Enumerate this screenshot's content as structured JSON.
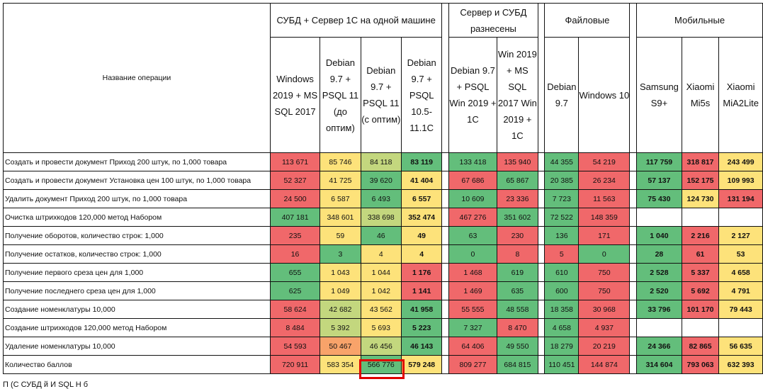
{
  "header": {
    "operation_label": "Название операции",
    "groups": [
      {
        "label": "СУБД + Сервер 1С на одной машине"
      },
      {
        "label": "Сервер и СУБД разнесены"
      },
      {
        "label": "Файловые"
      },
      {
        "label": "Мобильные"
      }
    ],
    "columns": [
      {
        "label": "Windows 2019 + MS SQL 2017"
      },
      {
        "label": "Debian 9.7 + PSQL 11 (до оптим)"
      },
      {
        "label": "Debian 9.7 + PSQL 11 (с оптим)"
      },
      {
        "label": "Debian 9.7 + PSQL 10.5-11.1C"
      },
      {
        "label": "Debian 9.7 + PSQL Win 2019 + 1C"
      },
      {
        "label": "Win 2019 + MS SQL 2017 Win 2019 + 1C"
      },
      {
        "label": "Debian 9.7"
      },
      {
        "label": "Windows 10"
      },
      {
        "label": "Samsung S9+"
      },
      {
        "label": "Xiaomi Mi5s"
      },
      {
        "label": "Xiaomi MiA2Lite"
      }
    ]
  },
  "colors": {
    "red": "#f0686a",
    "orange": "#f8a36a",
    "yellow": "#fde27a",
    "light_green": "#c3d77e",
    "green": "#63be7b",
    "highlight_border": "#e00000"
  },
  "rows": [
    {
      "name": "Создать и провести документ  Приход 200 штук, по 1,000 товара",
      "cells": [
        {
          "v": "113 671",
          "c": "R"
        },
        {
          "v": "85 746",
          "c": "Y"
        },
        {
          "v": "84 118",
          "c": "L"
        },
        {
          "v": "83 119",
          "c": "G",
          "b": true
        },
        {
          "v": "133 418",
          "c": "G"
        },
        {
          "v": "135 940",
          "c": "R"
        },
        {
          "v": "44 355",
          "c": "G"
        },
        {
          "v": "54 219",
          "c": "R"
        },
        {
          "v": "117 759",
          "c": "G",
          "b": true
        },
        {
          "v": "318 817",
          "c": "R",
          "b": true
        },
        {
          "v": "243 499",
          "c": "Y",
          "b": true
        }
      ]
    },
    {
      "name": "Создать и провести документ Установка цен 100 штук, по 1,000 товара",
      "cells": [
        {
          "v": "52 327",
          "c": "R"
        },
        {
          "v": "41 725",
          "c": "Y"
        },
        {
          "v": "39 620",
          "c": "G"
        },
        {
          "v": "41 404",
          "c": "Y",
          "b": true
        },
        {
          "v": "67 686",
          "c": "R"
        },
        {
          "v": "65 867",
          "c": "G"
        },
        {
          "v": "20 385",
          "c": "G"
        },
        {
          "v": "26 234",
          "c": "R"
        },
        {
          "v": "57 137",
          "c": "G",
          "b": true
        },
        {
          "v": "152 175",
          "c": "R",
          "b": true
        },
        {
          "v": "109 993",
          "c": "Y",
          "b": true
        }
      ]
    },
    {
      "name": "Удалить документ Приход 200 штук, по 1,000 товара",
      "cells": [
        {
          "v": "24 500",
          "c": "R"
        },
        {
          "v": "6 587",
          "c": "Y"
        },
        {
          "v": "6 493",
          "c": "G"
        },
        {
          "v": "6 557",
          "c": "Y",
          "b": true
        },
        {
          "v": "10 609",
          "c": "G"
        },
        {
          "v": "23 336",
          "c": "R"
        },
        {
          "v": "7 723",
          "c": "G"
        },
        {
          "v": "11 563",
          "c": "R"
        },
        {
          "v": "75 430",
          "c": "G",
          "b": true
        },
        {
          "v": "124 730",
          "c": "Y",
          "b": true
        },
        {
          "v": "131 194",
          "c": "R",
          "b": true
        }
      ]
    },
    {
      "name": "Очистка штрихкодов 120,000 метод Набором",
      "cells": [
        {
          "v": "407 181",
          "c": "G"
        },
        {
          "v": "348 601",
          "c": "Y"
        },
        {
          "v": "338 698",
          "c": "L"
        },
        {
          "v": "352 474",
          "c": "Y",
          "b": true
        },
        {
          "v": "467 276",
          "c": "R"
        },
        {
          "v": "351 602",
          "c": "G"
        },
        {
          "v": "72 522",
          "c": "G"
        },
        {
          "v": "148 359",
          "c": "R"
        },
        {
          "v": "",
          "c": "W"
        },
        {
          "v": "",
          "c": "W"
        },
        {
          "v": "",
          "c": "W"
        }
      ]
    },
    {
      "name": "Получение оборотов, количество строк: 1,000",
      "cells": [
        {
          "v": "235",
          "c": "R"
        },
        {
          "v": "59",
          "c": "Y"
        },
        {
          "v": "46",
          "c": "G"
        },
        {
          "v": "49",
          "c": "Y",
          "b": true
        },
        {
          "v": "63",
          "c": "G"
        },
        {
          "v": "230",
          "c": "R"
        },
        {
          "v": "136",
          "c": "G"
        },
        {
          "v": "171",
          "c": "R"
        },
        {
          "v": "1 040",
          "c": "G",
          "b": true
        },
        {
          "v": "2 216",
          "c": "R",
          "b": true
        },
        {
          "v": "2 127",
          "c": "Y",
          "b": true
        }
      ]
    },
    {
      "name": "Получение остатков, количество строк: 1,000",
      "cells": [
        {
          "v": "16",
          "c": "R"
        },
        {
          "v": "3",
          "c": "G"
        },
        {
          "v": "4",
          "c": "Y"
        },
        {
          "v": "4",
          "c": "Y",
          "b": true
        },
        {
          "v": "0",
          "c": "G"
        },
        {
          "v": "8",
          "c": "R"
        },
        {
          "v": "5",
          "c": "R"
        },
        {
          "v": "0",
          "c": "G"
        },
        {
          "v": "28",
          "c": "G",
          "b": true
        },
        {
          "v": "61",
          "c": "R",
          "b": true
        },
        {
          "v": "53",
          "c": "Y",
          "b": true
        }
      ]
    },
    {
      "name": "Получение первого среза цен для 1,000",
      "cells": [
        {
          "v": "655",
          "c": "G"
        },
        {
          "v": "1 043",
          "c": "Y"
        },
        {
          "v": "1 044",
          "c": "Y"
        },
        {
          "v": "1 176",
          "c": "R",
          "b": true
        },
        {
          "v": "1 468",
          "c": "R"
        },
        {
          "v": "619",
          "c": "G"
        },
        {
          "v": "610",
          "c": "G"
        },
        {
          "v": "750",
          "c": "R"
        },
        {
          "v": "2 528",
          "c": "G",
          "b": true
        },
        {
          "v": "5 337",
          "c": "R",
          "b": true
        },
        {
          "v": "4 658",
          "c": "Y",
          "b": true
        }
      ]
    },
    {
      "name": "Получение последнего среза цен для 1,000",
      "cells": [
        {
          "v": "625",
          "c": "G"
        },
        {
          "v": "1 049",
          "c": "Y"
        },
        {
          "v": "1 042",
          "c": "Y"
        },
        {
          "v": "1 141",
          "c": "R",
          "b": true
        },
        {
          "v": "1 469",
          "c": "R"
        },
        {
          "v": "635",
          "c": "G"
        },
        {
          "v": "600",
          "c": "G"
        },
        {
          "v": "750",
          "c": "R"
        },
        {
          "v": "2 520",
          "c": "G",
          "b": true
        },
        {
          "v": "5 692",
          "c": "R",
          "b": true
        },
        {
          "v": "4 791",
          "c": "Y",
          "b": true
        }
      ]
    },
    {
      "name": "Создание номенклатуры 10,000",
      "cells": [
        {
          "v": "58 624",
          "c": "R"
        },
        {
          "v": "42 682",
          "c": "L"
        },
        {
          "v": "43 562",
          "c": "Y"
        },
        {
          "v": "41 958",
          "c": "G",
          "b": true
        },
        {
          "v": "55 555",
          "c": "R"
        },
        {
          "v": "48 558",
          "c": "G"
        },
        {
          "v": "18 358",
          "c": "G"
        },
        {
          "v": "30 968",
          "c": "R"
        },
        {
          "v": "33 796",
          "c": "G",
          "b": true
        },
        {
          "v": "101 170",
          "c": "R",
          "b": true
        },
        {
          "v": "79 443",
          "c": "Y",
          "b": true
        }
      ]
    },
    {
      "name": "Создание штрихкодов 120,000 метод Набором",
      "cells": [
        {
          "v": "8 484",
          "c": "R"
        },
        {
          "v": "5 392",
          "c": "L"
        },
        {
          "v": "5 693",
          "c": "Y"
        },
        {
          "v": "5 223",
          "c": "G",
          "b": true
        },
        {
          "v": "7 327",
          "c": "G"
        },
        {
          "v": "8 470",
          "c": "R"
        },
        {
          "v": "4 658",
          "c": "G"
        },
        {
          "v": "4 937",
          "c": "R"
        },
        {
          "v": "",
          "c": "W"
        },
        {
          "v": "",
          "c": "W"
        },
        {
          "v": "",
          "c": "W"
        }
      ]
    },
    {
      "name": "Удаление номенклатуры 10,000",
      "cells": [
        {
          "v": "54 593",
          "c": "R"
        },
        {
          "v": "50 467",
          "c": "O"
        },
        {
          "v": "46 456",
          "c": "L"
        },
        {
          "v": "46 143",
          "c": "G",
          "b": true
        },
        {
          "v": "64 406",
          "c": "R"
        },
        {
          "v": "49 550",
          "c": "G"
        },
        {
          "v": "18 279",
          "c": "G"
        },
        {
          "v": "20 219",
          "c": "R"
        },
        {
          "v": "24 366",
          "c": "G",
          "b": true
        },
        {
          "v": "82 865",
          "c": "R",
          "b": true
        },
        {
          "v": "56 635",
          "c": "Y",
          "b": true
        }
      ]
    },
    {
      "name": "Количество баллов",
      "cells": [
        {
          "v": "720 911",
          "c": "R"
        },
        {
          "v": "583 354",
          "c": "Y"
        },
        {
          "v": "566 776",
          "c": "G"
        },
        {
          "v": "579 248",
          "c": "Y",
          "b": true
        },
        {
          "v": "809 277",
          "c": "R"
        },
        {
          "v": "684 815",
          "c": "G"
        },
        {
          "v": "110 451",
          "c": "G"
        },
        {
          "v": "144 874",
          "c": "R"
        },
        {
          "v": "314 604",
          "c": "G",
          "b": true
        },
        {
          "v": "793 063",
          "c": "R",
          "b": true
        },
        {
          "v": "632 393",
          "c": "Y",
          "b": true
        }
      ]
    }
  ],
  "footnote": "П                                                                                         (С                  СУБД                        й                            И               SQL     H            б"
}
